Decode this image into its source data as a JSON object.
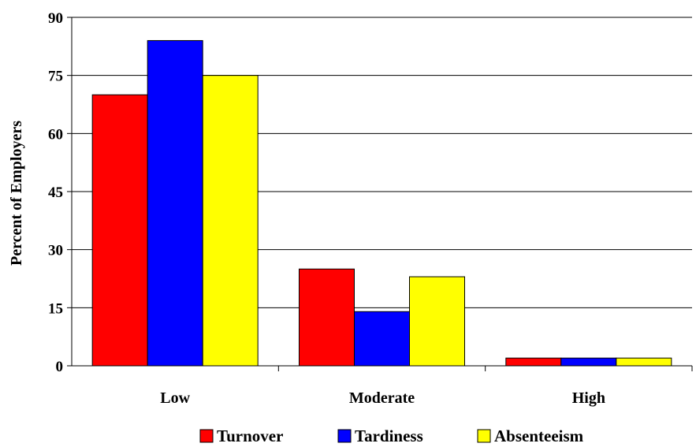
{
  "chart_data": {
    "type": "bar",
    "title": "",
    "xlabel": "",
    "ylabel": "Percent of Employers",
    "ylim": [
      0,
      90
    ],
    "yticks": [
      0,
      15,
      30,
      45,
      60,
      75,
      90
    ],
    "grid": true,
    "legend_position": "bottom",
    "categories": [
      "Low",
      "Moderate",
      "High"
    ],
    "series": [
      {
        "name": "Turnover",
        "color": "#ff0000",
        "values": [
          70,
          25,
          2
        ]
      },
      {
        "name": "Tardiness",
        "color": "#0000ff",
        "values": [
          84,
          14,
          2
        ]
      },
      {
        "name": "Absenteeism",
        "color": "#ffff00",
        "values": [
          75,
          23,
          2
        ]
      }
    ]
  }
}
